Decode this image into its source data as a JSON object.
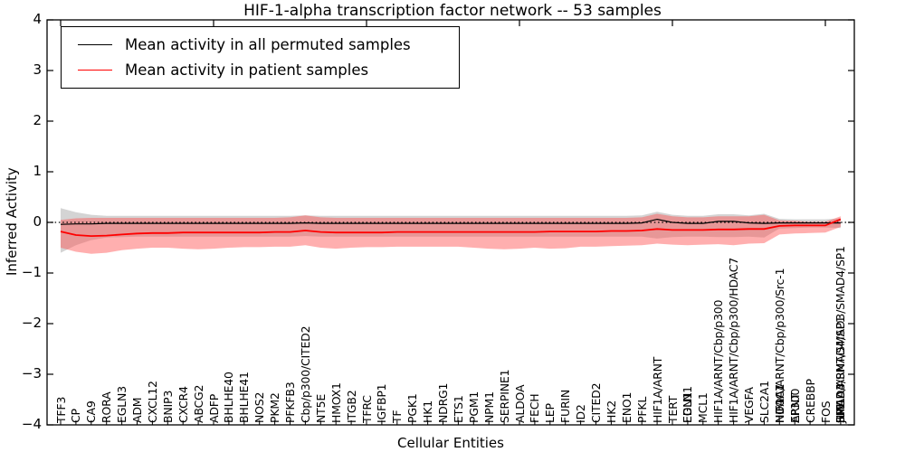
{
  "chart_data": {
    "type": "line",
    "title": "HIF-1-alpha transcription factor network -- 53 samples",
    "xlabel": "Cellular Entities",
    "ylabel": "Inferred Activity",
    "ylim": [
      -4,
      4
    ],
    "yticks": [
      4,
      3,
      2,
      1,
      0,
      -1,
      -2,
      -3,
      -4
    ],
    "ytick_labels": [
      "4",
      "3",
      "2",
      "1",
      "0",
      "−1",
      "−2",
      "−3",
      "−4"
    ],
    "grid": false,
    "zero_line_style": "dotted",
    "legend_position": "upper left",
    "x_tick_clusters": [
      [
        "TFF3"
      ],
      [
        "CP"
      ],
      [
        "CA9"
      ],
      [
        "RORA"
      ],
      [
        "EGLN3"
      ],
      [
        "ADM"
      ],
      [
        "CXCL12"
      ],
      [
        "BNIP3"
      ],
      [
        "CXCR4"
      ],
      [
        "ABCG2"
      ],
      [
        "ADFP"
      ],
      [
        "BHLHE40"
      ],
      [
        "BHLHE41"
      ],
      [
        "NOS2"
      ],
      [
        "PKM2"
      ],
      [
        "PFKFB3"
      ],
      [
        "Cbp/p300/CITED2"
      ],
      [
        "NT5E"
      ],
      [
        "HMOX1"
      ],
      [
        "ITGB2"
      ],
      [
        "TFRC"
      ],
      [
        "IGFBP1"
      ],
      [
        "TF"
      ],
      [
        "PGK1"
      ],
      [
        "HK1"
      ],
      [
        "NDRG1"
      ],
      [
        "ETS1"
      ],
      [
        "PGM1"
      ],
      [
        "NPM1"
      ],
      [
        "SERPINE1"
      ],
      [
        "ALDOA"
      ],
      [
        "FECH"
      ],
      [
        "LEP"
      ],
      [
        "FURIN"
      ],
      [
        "ID2"
      ],
      [
        "CITED2"
      ],
      [
        "HK2"
      ],
      [
        "ENO1"
      ],
      [
        "PFKL"
      ],
      [
        "HIF1A/ARNT"
      ],
      [
        "TERT"
      ],
      [
        "EDN1",
        "EGLN1"
      ],
      [
        "MCL1"
      ],
      [
        "HIF1A/ARNT/Cbp/p300"
      ],
      [
        "HIF1A/ARNT/Cbp/p300/HDAC7"
      ],
      [
        "VEGFA"
      ],
      [
        "SLC2A1"
      ],
      [
        "HIF1A/ARNT/Cbp/p300/Src-1",
        "HIF1A",
        "NCOA1",
        "HDAC7"
      ],
      [
        "ARNT",
        "EP300"
      ],
      [
        "CREBBP"
      ],
      [
        "FOS"
      ],
      [
        "HIF1A/ARNT/SMAD3/SMAD4/SP1",
        "SMAD3/SMAD4/SP1",
        "HIF1A",
        "SMAD3",
        "SMAD4",
        "SP1",
        "JUN"
      ]
    ],
    "series": [
      {
        "name": "Mean activity in all permuted samples",
        "color": "#000000",
        "values": [
          -0.04,
          -0.03,
          -0.03,
          -0.02,
          -0.02,
          -0.02,
          -0.02,
          -0.02,
          -0.02,
          -0.02,
          -0.02,
          -0.02,
          -0.02,
          -0.02,
          -0.02,
          -0.02,
          -0.01,
          -0.02,
          -0.02,
          -0.02,
          -0.02,
          -0.02,
          -0.02,
          -0.02,
          -0.02,
          -0.02,
          -0.02,
          -0.02,
          -0.02,
          -0.02,
          -0.02,
          -0.02,
          -0.02,
          -0.02,
          -0.02,
          -0.02,
          -0.02,
          -0.02,
          -0.01,
          0.06,
          0,
          -0.02,
          -0.02,
          0.02,
          0.02,
          -0.01,
          -0.02,
          -0.01,
          -0.01,
          -0.01,
          -0.01,
          -0.01
        ]
      },
      {
        "name": "Mean activity in patient samples",
        "color": "#ff0000",
        "values": [
          -0.18,
          -0.25,
          -0.27,
          -0.26,
          -0.24,
          -0.22,
          -0.21,
          -0.21,
          -0.2,
          -0.2,
          -0.2,
          -0.2,
          -0.2,
          -0.2,
          -0.19,
          -0.19,
          -0.16,
          -0.19,
          -0.2,
          -0.2,
          -0.2,
          -0.2,
          -0.19,
          -0.19,
          -0.19,
          -0.19,
          -0.19,
          -0.19,
          -0.19,
          -0.19,
          -0.19,
          -0.19,
          -0.18,
          -0.18,
          -0.18,
          -0.18,
          -0.17,
          -0.17,
          -0.16,
          -0.13,
          -0.15,
          -0.15,
          -0.15,
          -0.14,
          -0.14,
          -0.13,
          -0.13,
          -0.07,
          -0.06,
          -0.06,
          -0.06,
          0.06
        ]
      }
    ],
    "bands": [
      {
        "name": "permuted-band",
        "color": "#aaaaaa",
        "opacity": 0.5,
        "upper": [
          0.28,
          0.2,
          0.15,
          0.13,
          0.13,
          0.13,
          0.13,
          0.13,
          0.13,
          0.13,
          0.13,
          0.13,
          0.13,
          0.13,
          0.13,
          0.13,
          0.14,
          0.13,
          0.13,
          0.13,
          0.13,
          0.13,
          0.13,
          0.13,
          0.13,
          0.13,
          0.13,
          0.13,
          0.13,
          0.13,
          0.13,
          0.13,
          0.13,
          0.13,
          0.13,
          0.13,
          0.13,
          0.13,
          0.14,
          0.21,
          0.15,
          0.13,
          0.13,
          0.16,
          0.16,
          0.14,
          0.17,
          0.07,
          0.06,
          0.06,
          0.06,
          0.08
        ],
        "lower": [
          -0.6,
          -0.45,
          -0.35,
          -0.3,
          -0.29,
          -0.28,
          -0.28,
          -0.28,
          -0.28,
          -0.28,
          -0.28,
          -0.28,
          -0.28,
          -0.28,
          -0.28,
          -0.28,
          -0.27,
          -0.28,
          -0.28,
          -0.28,
          -0.28,
          -0.28,
          -0.28,
          -0.28,
          -0.28,
          -0.28,
          -0.28,
          -0.28,
          -0.28,
          -0.28,
          -0.28,
          -0.28,
          -0.28,
          -0.28,
          -0.28,
          -0.28,
          -0.28,
          -0.28,
          -0.28,
          -0.32,
          -0.29,
          -0.28,
          -0.28,
          -0.29,
          -0.29,
          -0.28,
          -0.3,
          -0.12,
          -0.11,
          -0.1,
          -0.1,
          -0.11
        ]
      },
      {
        "name": "patient-band",
        "color": "#ff4d4d",
        "opacity": 0.45,
        "upper": [
          0.05,
          0.08,
          0.09,
          0.09,
          0.09,
          0.09,
          0.09,
          0.09,
          0.09,
          0.09,
          0.09,
          0.09,
          0.09,
          0.09,
          0.09,
          0.1,
          0.14,
          0.1,
          0.09,
          0.09,
          0.09,
          0.09,
          0.09,
          0.09,
          0.09,
          0.09,
          0.09,
          0.09,
          0.09,
          0.09,
          0.09,
          0.09,
          0.09,
          0.09,
          0.09,
          0.09,
          0.09,
          0.09,
          0.1,
          0.17,
          0.12,
          0.1,
          0.1,
          0.12,
          0.12,
          0.12,
          0.15,
          0.04,
          0.03,
          0.01,
          0.01,
          0.12
        ],
        "lower": [
          -0.5,
          -0.58,
          -0.62,
          -0.6,
          -0.55,
          -0.52,
          -0.5,
          -0.5,
          -0.52,
          -0.53,
          -0.52,
          -0.5,
          -0.49,
          -0.49,
          -0.48,
          -0.48,
          -0.45,
          -0.5,
          -0.52,
          -0.5,
          -0.49,
          -0.49,
          -0.48,
          -0.48,
          -0.48,
          -0.48,
          -0.48,
          -0.5,
          -0.52,
          -0.53,
          -0.52,
          -0.5,
          -0.52,
          -0.51,
          -0.48,
          -0.48,
          -0.47,
          -0.46,
          -0.45,
          -0.42,
          -0.44,
          -0.45,
          -0.44,
          -0.43,
          -0.45,
          -0.42,
          -0.41,
          -0.24,
          -0.22,
          -0.21,
          -0.2,
          -0.09
        ]
      }
    ]
  }
}
